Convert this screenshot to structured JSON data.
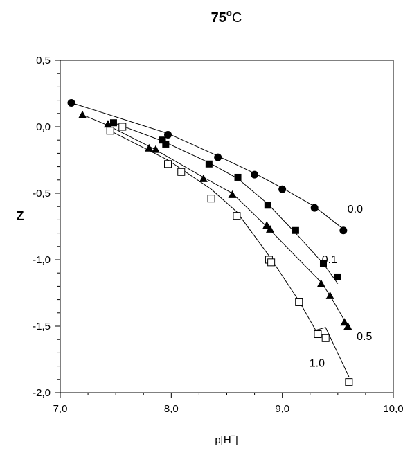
{
  "chart_data": {
    "type": "scatter",
    "title_prefix": "75",
    "title_deg": "o",
    "title_unit": "C",
    "xlabel_main": "p[H",
    "xlabel_sup": "+",
    "xlabel_close": "]",
    "ylabel": "Z",
    "xlim": [
      7.0,
      10.0
    ],
    "ylim": [
      -2.0,
      0.5
    ],
    "xticks": [
      7.0,
      8.0,
      9.0,
      10.0
    ],
    "xtick_labels": [
      "7,0",
      "8,0",
      "9,0",
      "10,0"
    ],
    "yticks": [
      0.5,
      0.0,
      -0.5,
      -1.0,
      -1.5,
      -2.0
    ],
    "ytick_labels": [
      "0,5",
      "0,0",
      "-0,5",
      "-1,0",
      "-1,5",
      "-2,0"
    ],
    "grid": false,
    "series": [
      {
        "label": "0.0",
        "marker": "filled-circle",
        "points": [
          [
            7.1,
            0.18
          ],
          [
            7.97,
            -0.06
          ],
          [
            8.42,
            -0.23
          ],
          [
            8.75,
            -0.36
          ],
          [
            9.0,
            -0.47
          ],
          [
            9.29,
            -0.61
          ],
          [
            9.55,
            -0.78
          ]
        ],
        "fit": [
          [
            7.1,
            0.18
          ],
          [
            7.97,
            -0.05
          ],
          [
            8.42,
            -0.22
          ],
          [
            8.75,
            -0.35
          ],
          [
            9.0,
            -0.46
          ],
          [
            9.29,
            -0.6
          ],
          [
            9.55,
            -0.77
          ]
        ]
      },
      {
        "label": "0.1",
        "marker": "filled-square",
        "points": [
          [
            7.48,
            0.03
          ],
          [
            7.92,
            -0.1
          ],
          [
            7.95,
            -0.13
          ],
          [
            8.34,
            -0.28
          ],
          [
            8.6,
            -0.38
          ],
          [
            8.87,
            -0.59
          ],
          [
            9.12,
            -0.78
          ],
          [
            9.37,
            -1.03
          ],
          [
            9.5,
            -1.13
          ]
        ],
        "fit": [
          [
            7.48,
            0.03
          ],
          [
            7.93,
            -0.11
          ],
          [
            8.34,
            -0.27
          ],
          [
            8.6,
            -0.39
          ],
          [
            8.87,
            -0.58
          ],
          [
            9.12,
            -0.8
          ],
          [
            9.37,
            -1.03
          ],
          [
            9.5,
            -1.18
          ]
        ]
      },
      {
        "label": "0.5",
        "marker": "filled-triangle",
        "points": [
          [
            7.2,
            0.09
          ],
          [
            7.43,
            0.02
          ],
          [
            7.8,
            -0.16
          ],
          [
            7.86,
            -0.17
          ],
          [
            8.29,
            -0.39
          ],
          [
            8.55,
            -0.51
          ],
          [
            8.86,
            -0.74
          ],
          [
            8.89,
            -0.77
          ],
          [
            9.35,
            -1.18
          ],
          [
            9.43,
            -1.27
          ],
          [
            9.56,
            -1.47
          ],
          [
            9.59,
            -1.5
          ]
        ],
        "fit": [
          [
            7.2,
            0.09
          ],
          [
            7.43,
            0.01
          ],
          [
            7.83,
            -0.16
          ],
          [
            8.29,
            -0.38
          ],
          [
            8.55,
            -0.5
          ],
          [
            8.87,
            -0.76
          ],
          [
            9.35,
            -1.17
          ],
          [
            9.43,
            -1.27
          ],
          [
            9.59,
            -1.5
          ]
        ]
      },
      {
        "label": "1.0",
        "marker": "open-square",
        "points": [
          [
            7.45,
            -0.03
          ],
          [
            7.56,
            0.0
          ],
          [
            7.97,
            -0.28
          ],
          [
            8.09,
            -0.34
          ],
          [
            8.36,
            -0.54
          ],
          [
            8.59,
            -0.67
          ],
          [
            8.88,
            -1.0
          ],
          [
            8.9,
            -1.02
          ],
          [
            9.15,
            -1.32
          ],
          [
            9.32,
            -1.56
          ],
          [
            9.39,
            -1.59
          ],
          [
            9.6,
            -1.92
          ]
        ],
        "fit": [
          [
            7.45,
            -0.03
          ],
          [
            7.97,
            -0.25
          ],
          [
            8.36,
            -0.47
          ],
          [
            8.59,
            -0.64
          ],
          [
            8.88,
            -0.97
          ],
          [
            9.15,
            -1.31
          ],
          [
            9.3,
            -1.53
          ],
          [
            9.39,
            -1.51
          ],
          [
            9.6,
            -1.88
          ]
        ]
      }
    ],
    "series_label_positions": [
      "right",
      "right",
      "right",
      "left"
    ]
  }
}
